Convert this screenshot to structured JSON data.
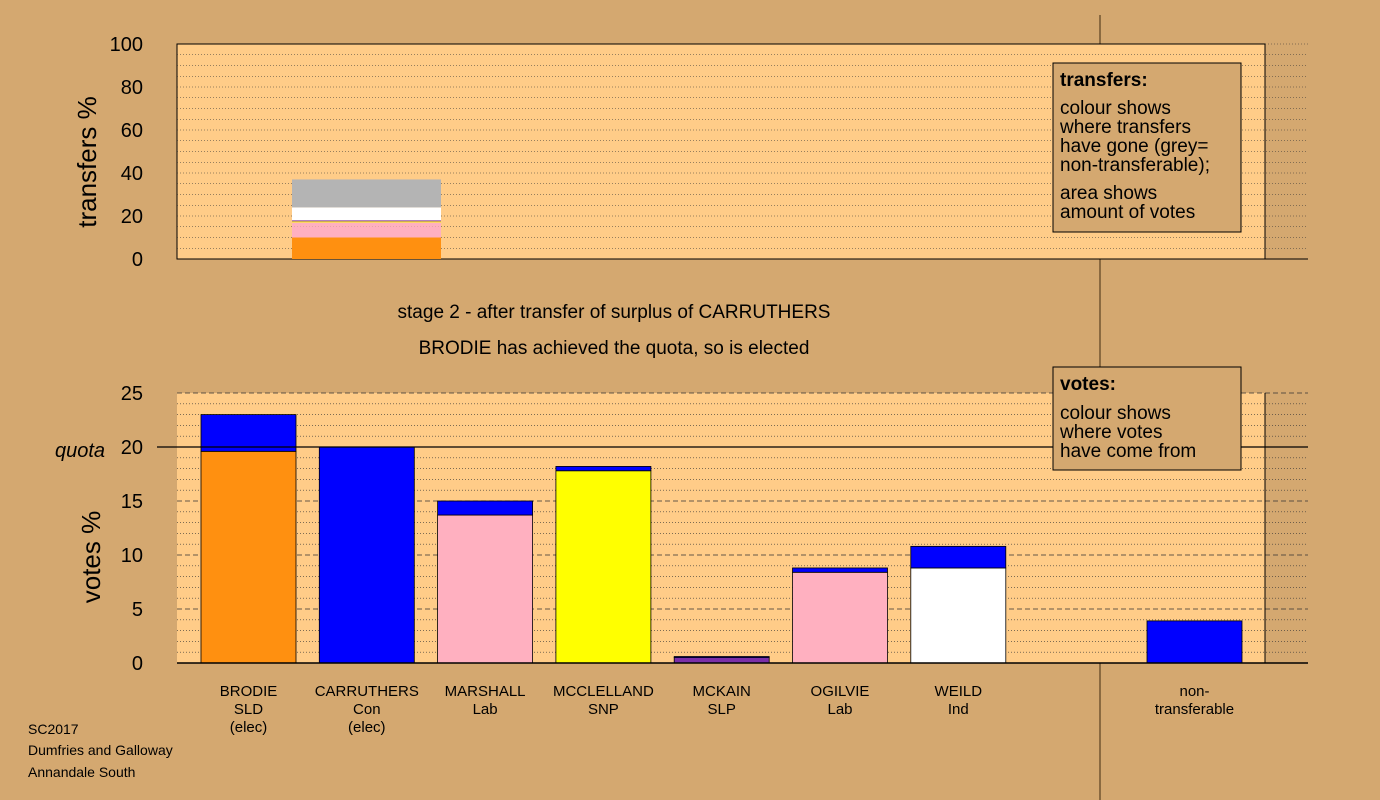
{
  "colors": {
    "background": "#d4a870",
    "plot_bg": "#ffcc88",
    "SLD": "#ff9010",
    "Con": "#0000ff",
    "Lab": "#ffb0c0",
    "SNP": "#ffff00",
    "SLP": "#7a2fa8",
    "Ind": "#ffffff",
    "nontransferable": "#b4b4b4"
  },
  "chart_data": [
    {
      "type": "bar",
      "stacked": true,
      "ylabel": "transfers %",
      "ylim": [
        0,
        100
      ],
      "yticks": [
        0,
        20,
        40,
        60,
        80,
        100
      ],
      "grid": true,
      "legend_placement": "top-right",
      "bar_category": "CARRUTHERS",
      "segments": [
        {
          "party": "SLD",
          "target": "BRODIE",
          "value": 10
        },
        {
          "party": "Lab",
          "target": "MARSHALL",
          "value": 5
        },
        {
          "party": "Lab",
          "target": "OGILVIE",
          "value": 2
        },
        {
          "party": "SNP",
          "target": "MCCLELLAND",
          "value": 0.5
        },
        {
          "party": "SLP",
          "target": "MCKAIN",
          "value": 0.5
        },
        {
          "party": "Ind",
          "target": "WEILD",
          "value": 6
        },
        {
          "party": "nontransferable",
          "target": "non-transferable",
          "value": 13
        }
      ],
      "legend": {
        "title": "transfers:",
        "lines_1": [
          "colour shows",
          "where transfers",
          "have gone (grey=",
          "non-transferable);"
        ],
        "lines_2": [
          "area shows",
          "amount of votes"
        ]
      }
    },
    {
      "type": "bar",
      "stacked": true,
      "ylabel": "votes %",
      "ylim": [
        0,
        25
      ],
      "yticks": [
        0,
        5,
        10,
        15,
        20,
        25
      ],
      "quota": 20,
      "quota_label": "quota",
      "grid": true,
      "legend_placement": "top-right",
      "categories": [
        {
          "name": "BRODIE",
          "party": "SLD",
          "note": "(elec)",
          "segments": [
            {
              "party": "SLD",
              "value": 19.6
            },
            {
              "party": "Con",
              "value": 3.4
            }
          ]
        },
        {
          "name": "CARRUTHERS",
          "party": "Con",
          "note": "(elec)",
          "segments": [
            {
              "party": "Con",
              "value": 20
            }
          ]
        },
        {
          "name": "MARSHALL",
          "party": "Lab",
          "note": "",
          "segments": [
            {
              "party": "Lab",
              "value": 13.7
            },
            {
              "party": "Con",
              "value": 1.3
            }
          ]
        },
        {
          "name": "MCCLELLAND",
          "party": "SNP",
          "note": "",
          "segments": [
            {
              "party": "SNP",
              "value": 17.8
            },
            {
              "party": "Con",
              "value": 0.4
            }
          ]
        },
        {
          "name": "MCKAIN",
          "party": "SLP",
          "note": "",
          "segments": [
            {
              "party": "SLP",
              "value": 0.5
            },
            {
              "party": "Con",
              "value": 0.1
            }
          ]
        },
        {
          "name": "OGILVIE",
          "party": "Lab",
          "note": "",
          "segments": [
            {
              "party": "Lab",
              "value": 8.4
            },
            {
              "party": "Con",
              "value": 0.4
            }
          ]
        },
        {
          "name": "WEILD",
          "party": "Ind",
          "note": "",
          "segments": [
            {
              "party": "Ind",
              "value": 8.8
            },
            {
              "party": "Con",
              "value": 2.0
            }
          ]
        }
      ],
      "nontransferable": {
        "label_1": "non-",
        "label_2": "transferable",
        "segments": [
          {
            "party": "Con",
            "value": 3.9
          }
        ]
      },
      "legend": {
        "title": "votes:",
        "lines": [
          "colour shows",
          "where votes",
          "have come from"
        ]
      }
    }
  ],
  "stage_text": "stage 2 - after transfer of surplus of CARRUTHERS",
  "elected_text": "BRODIE has achieved the quota, so is elected",
  "footer": [
    "SC2017",
    "Dumfries and Galloway",
    "Annandale South"
  ]
}
